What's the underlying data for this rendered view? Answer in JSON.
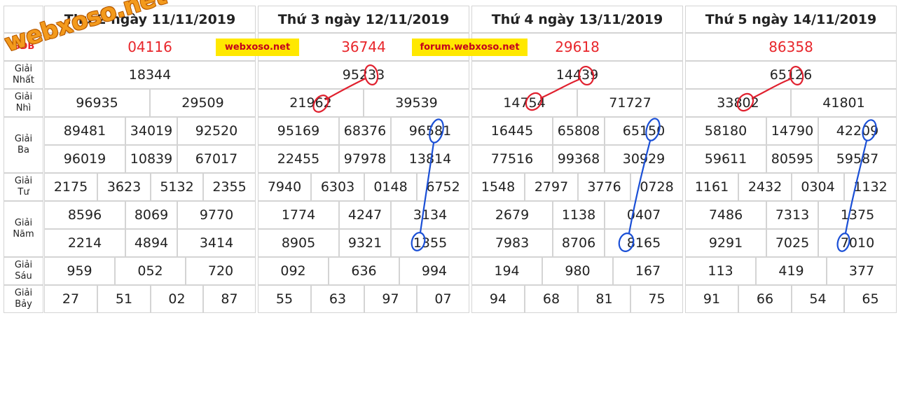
{
  "logo": "webxoso.net",
  "watermarks": [
    "webxoso.net",
    "forum.webxoso.net"
  ],
  "prize_labels": {
    "db": "GĐB",
    "g1": "Giải\nNhất",
    "g2": "Giải\nNhì",
    "g3": "Giải\nBa",
    "g4": "Giải\nTư",
    "g5": "Giải\nNăm",
    "g6": "Giải\nSáu",
    "g7": "Giải\nBảy"
  },
  "days": [
    {
      "header": "Thứ 2 ngày 11/11/2019",
      "db": [
        "04116"
      ],
      "g1": [
        "18344"
      ],
      "g2": [
        "96935",
        "29509"
      ],
      "g3a": [
        "89481",
        "34019",
        "92520"
      ],
      "g3b": [
        "96019",
        "10839",
        "67017"
      ],
      "g4": [
        "2175",
        "3623",
        "5132",
        "2355"
      ],
      "g5a": [
        "8596",
        "8069",
        "9770"
      ],
      "g5b": [
        "2214",
        "4894",
        "3414"
      ],
      "g6": [
        "959",
        "052",
        "720"
      ],
      "g7": [
        "27",
        "51",
        "02",
        "87"
      ]
    },
    {
      "header": "Thứ 3 ngày 12/11/2019",
      "db": [
        "36744"
      ],
      "g1": [
        "95233"
      ],
      "g2": [
        "21962",
        "39539"
      ],
      "g3a": [
        "95169",
        "68376",
        "96581"
      ],
      "g3b": [
        "22455",
        "97978",
        "13814"
      ],
      "g4": [
        "7940",
        "6303",
        "0148",
        "6752"
      ],
      "g5a": [
        "1774",
        "4247",
        "3134"
      ],
      "g5b": [
        "8905",
        "9321",
        "1355"
      ],
      "g6": [
        "092",
        "636",
        "994"
      ],
      "g7": [
        "55",
        "63",
        "97",
        "07"
      ]
    },
    {
      "header": "Thứ 4 ngày 13/11/2019",
      "db": [
        "29618"
      ],
      "g1": [
        "14439"
      ],
      "g2": [
        "14754",
        "71727"
      ],
      "g3a": [
        "16445",
        "65808",
        "65150"
      ],
      "g3b": [
        "77516",
        "99368",
        "30929"
      ],
      "g4": [
        "1548",
        "2797",
        "3776",
        "0728"
      ],
      "g5a": [
        "2679",
        "1138",
        "0407"
      ],
      "g5b": [
        "7983",
        "8706",
        "8165"
      ],
      "g6": [
        "194",
        "980",
        "167"
      ],
      "g7": [
        "94",
        "68",
        "81",
        "75"
      ]
    },
    {
      "header": "Thứ 5 ngày 14/11/2019",
      "db": [
        "86358"
      ],
      "g1": [
        "65126"
      ],
      "g2": [
        "33802",
        "41801"
      ],
      "g3a": [
        "58180",
        "14790",
        "42209"
      ],
      "g3b": [
        "59611",
        "80595",
        "59587"
      ],
      "g4": [
        "1161",
        "2432",
        "0304",
        "1132"
      ],
      "g5a": [
        "7486",
        "7313",
        "1375"
      ],
      "g5b": [
        "9291",
        "7025",
        "7010"
      ],
      "g6": [
        "113",
        "419",
        "377"
      ],
      "g7": [
        "91",
        "66",
        "54",
        "65"
      ]
    }
  ],
  "colors": {
    "special_prize": "#e8262b",
    "red_marker": "#e0202e",
    "blue_marker": "#1a4fd6",
    "watermark_bg": "#ffe800"
  }
}
